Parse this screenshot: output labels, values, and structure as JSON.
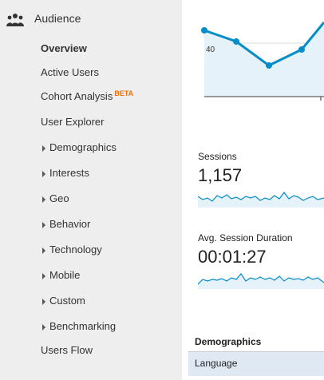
{
  "sidebar": {
    "section_title": "Audience",
    "section_icon": "people-icon",
    "items": [
      {
        "label": "Overview",
        "active": true,
        "expandable": false
      },
      {
        "label": "Active Users",
        "active": false,
        "expandable": false
      },
      {
        "label": "Cohort Analysis",
        "badge": "BETA",
        "active": false,
        "expandable": false
      },
      {
        "label": "User Explorer",
        "active": false,
        "expandable": false
      },
      {
        "label": "Demographics",
        "active": false,
        "expandable": true
      },
      {
        "label": "Interests",
        "active": false,
        "expandable": true
      },
      {
        "label": "Geo",
        "active": false,
        "expandable": true
      },
      {
        "label": "Behavior",
        "active": false,
        "expandable": true
      },
      {
        "label": "Technology",
        "active": false,
        "expandable": true
      },
      {
        "label": "Mobile",
        "active": false,
        "expandable": true
      },
      {
        "label": "Custom",
        "active": false,
        "expandable": true
      },
      {
        "label": "Benchmarking",
        "active": false,
        "expandable": true
      },
      {
        "label": "Users Flow",
        "active": false,
        "expandable": false
      }
    ]
  },
  "main": {
    "chart": {
      "y_tick": "40",
      "line_color": "#058dc7",
      "fill_color": "#e6f2fa"
    },
    "metrics": [
      {
        "label": "Sessions",
        "value": "1,157"
      },
      {
        "label": "Avg. Session Duration",
        "value": "00:01:27"
      }
    ],
    "demographics": {
      "header": "Demographics",
      "row": "Language"
    }
  }
}
